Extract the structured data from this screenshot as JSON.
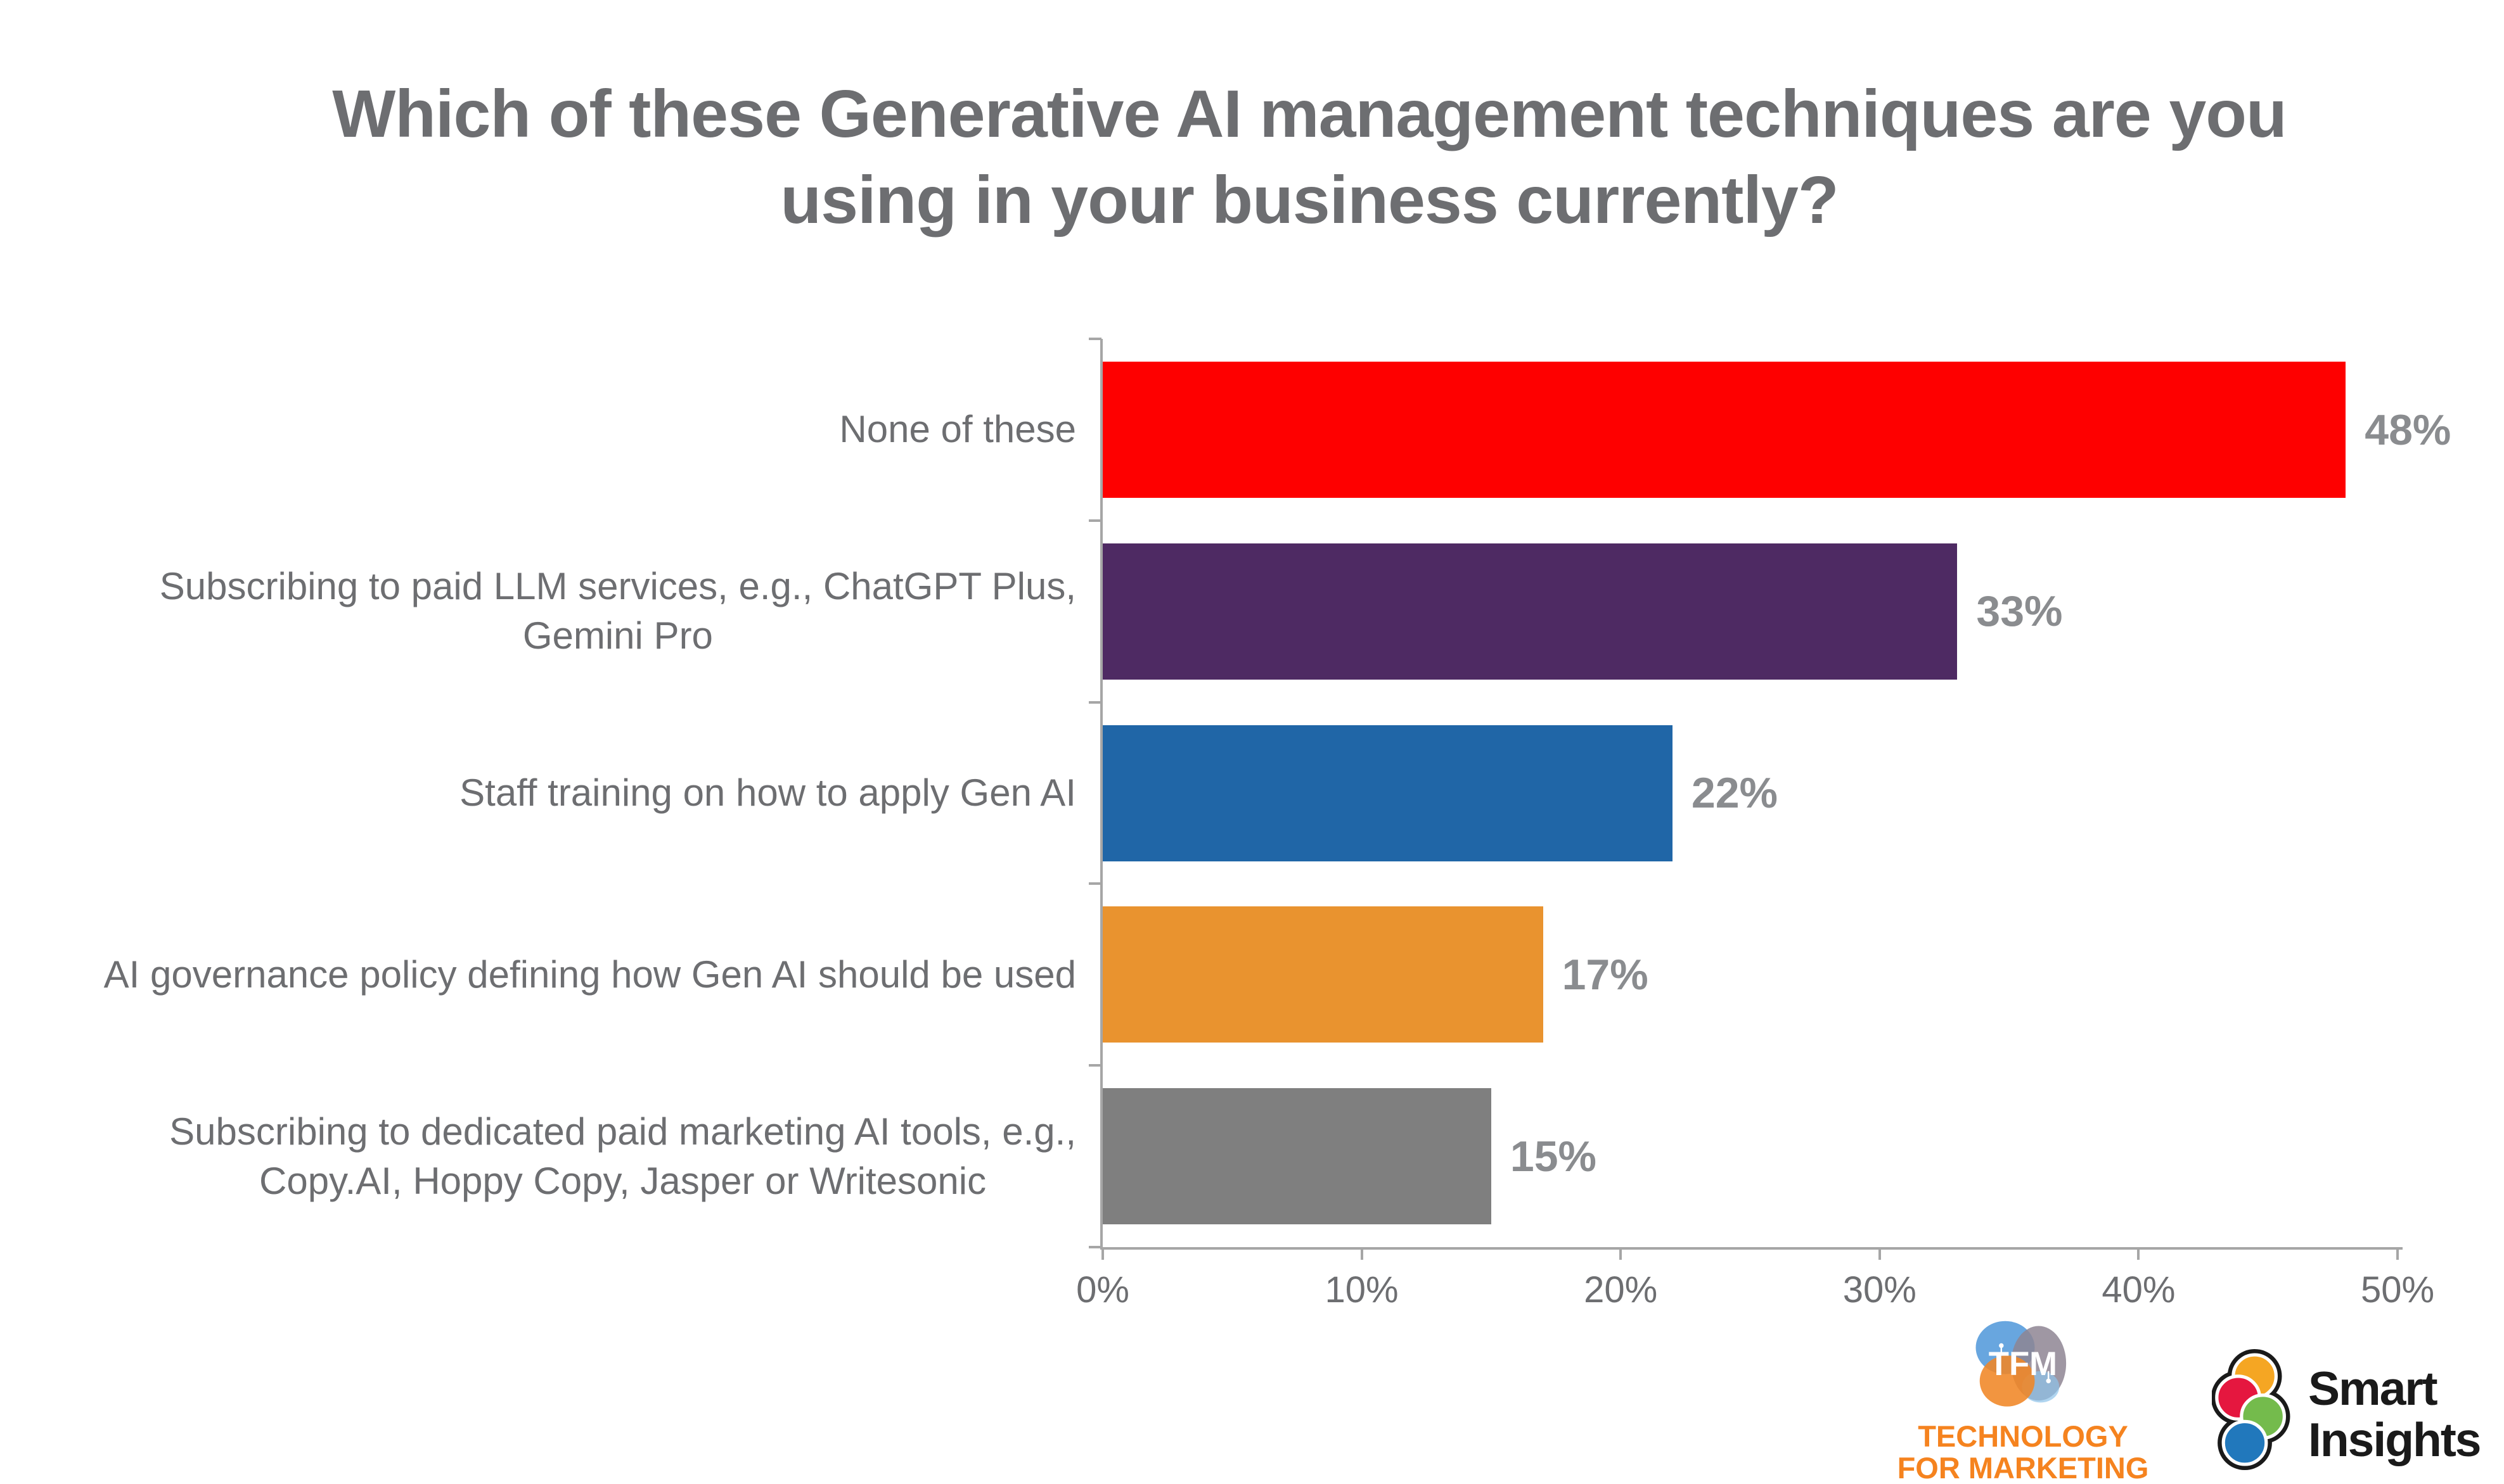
{
  "title": {
    "lines": [
      "Which of these Generative AI management techniques are you",
      "using in your business currently?"
    ],
    "color": "#6D6E71"
  },
  "chart_data": {
    "type": "bar",
    "orientation": "horizontal",
    "title": "Which of these Generative AI management techniques are you using in your business currently?",
    "categories": [
      "None of these",
      "Subscribing to paid LLM services, e.g., ChatGPT Plus, Gemini Pro",
      "Staff training on how to apply Gen AI",
      "AI governance policy defining how Gen AI should be used",
      "Subscribing to dedicated paid marketing AI tools, e.g., Copy.AI, Hoppy Copy, Jasper or Writesonic"
    ],
    "category_lines": [
      [
        "None of these"
      ],
      [
        "Subscribing to paid LLM services, e.g., ChatGPT Plus,",
        "Gemini Pro"
      ],
      [
        "Staff training on how to apply Gen AI"
      ],
      [
        "AI governance policy defining how Gen AI should be used"
      ],
      [
        "Subscribing to dedicated paid marketing AI tools, e.g.,",
        "Copy.AI, Hoppy Copy, Jasper or Writesonic"
      ]
    ],
    "values": [
      48,
      33,
      22,
      17,
      15
    ],
    "value_labels": [
      "48%",
      "33%",
      "22%",
      "17%",
      "15%"
    ],
    "bar_colors": [
      "#FE0000",
      "#4E2A63",
      "#2066A7",
      "#E9932F",
      "#7F7F7F"
    ],
    "xlabel": "",
    "ylabel": "",
    "xlim": [
      0,
      50
    ],
    "x_tick_values": [
      0,
      10,
      20,
      30,
      40,
      50
    ],
    "x_tick_labels": [
      "0%",
      "10%",
      "20%",
      "30%",
      "40%",
      "50%"
    ],
    "grid": "off",
    "legend": "none",
    "category_label_color": "#6D6E71",
    "value_label_color": "#8A8C8F",
    "tick_label_color": "#6D6E71",
    "axis_color": "#A6A6A6"
  },
  "footer": {
    "tfm": {
      "monogram": "TFM",
      "line1": "TECHNOLOGY",
      "line2": "FOR MARKETING",
      "text_color": "#F5831F",
      "blob_blue": "#4D96D9",
      "blob_light_blue": "#8FC3EA",
      "blob_gray": "#8E8593",
      "blob_orange": "#F08626"
    },
    "smart_insights": {
      "line1": "Smart",
      "line2": "Insights",
      "text_color": "#1A1A1A",
      "outline_color": "#1A1A1A",
      "circle_orange": "#F5A623",
      "circle_red": "#E5173F",
      "circle_green": "#74BB4C",
      "circle_blue": "#2178BC"
    }
  }
}
